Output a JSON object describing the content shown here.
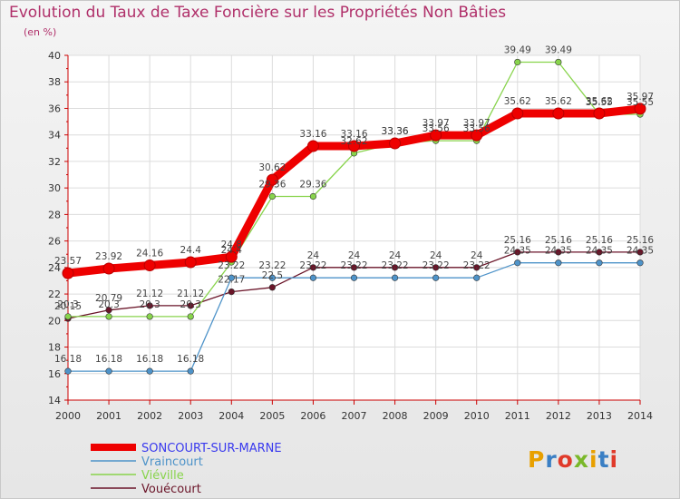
{
  "header": {
    "title": "Evolution du Taux de Taxe Foncière sur les Propriétés Non Bâties",
    "unit": "(en %)"
  },
  "logo": {
    "text": "Proxiti",
    "colors": [
      "#e8a000",
      "#3a7fc4",
      "#e03a2a",
      "#7ab82a",
      "#e8a000",
      "#3a7fc4",
      "#e03a2a"
    ]
  },
  "chart_data": {
    "type": "line",
    "x": [
      "2000",
      "2001",
      "2002",
      "2003",
      "2004",
      "2005",
      "2006",
      "2007",
      "2008",
      "2009",
      "2010",
      "2011",
      "2012",
      "2013",
      "2014"
    ],
    "ylim": [
      14,
      40
    ],
    "yticks": [
      "14",
      "16",
      "18",
      "20",
      "22",
      "24",
      "26",
      "28",
      "30",
      "32",
      "34",
      "36",
      "38",
      "40"
    ],
    "grid": true,
    "legend": "bottom-left",
    "series": [
      {
        "name": "SONCOURT-SUR-MARNE",
        "color": "#ee0000",
        "text_color": "#3a3aee",
        "values": [
          23.57,
          23.92,
          24.16,
          24.4,
          24.8,
          30.62,
          33.16,
          33.16,
          33.36,
          33.97,
          33.97,
          35.62,
          35.62,
          35.62,
          35.97
        ],
        "labels": [
          "23.57",
          "23.92",
          "24.16",
          "24.4",
          "24.8",
          "30.62",
          "33.16",
          "33.16",
          "33.36",
          "33.97",
          "33.97",
          "35.62",
          "35.62",
          "35.62",
          "35.97"
        ]
      },
      {
        "name": "Vraincourt",
        "color": "#4e93c9",
        "text_color": "#4e93c9",
        "values": [
          16.18,
          16.18,
          16.18,
          16.18,
          23.22,
          23.22,
          23.22,
          23.22,
          23.22,
          23.22,
          23.22,
          24.35,
          24.35,
          24.35,
          24.35
        ],
        "labels": [
          "16.18",
          "16.18",
          "16.18",
          "16.18",
          "23.22",
          "23.22",
          "23.22",
          "23.22",
          "23.22",
          "23.22",
          "23.22",
          "24.35",
          "24.35",
          "24.35",
          "24.35"
        ]
      },
      {
        "name": "Viéville",
        "color": "#88d44c",
        "text_color": "#88d44c",
        "values": [
          20.3,
          20.3,
          20.3,
          20.3,
          24.4,
          29.36,
          29.36,
          32.62,
          33.36,
          33.56,
          33.56,
          39.49,
          39.49,
          35.55,
          35.55
        ],
        "labels": [
          "20.3",
          "20.3",
          "20.3",
          "20.3",
          "24.4",
          "29.36",
          "29.36",
          "32.62",
          "33.36",
          "33.56",
          "33.56",
          "39.49",
          "39.49",
          "35.55",
          "35.55"
        ]
      },
      {
        "name": "Vouécourt",
        "color": "#6a1428",
        "text_color": "#6a1428",
        "values": [
          20.15,
          20.79,
          21.12,
          21.12,
          22.17,
          22.5,
          24,
          24,
          24,
          24,
          24,
          25.16,
          25.16,
          25.16,
          25.16
        ],
        "labels": [
          "20.15",
          "20.79",
          "21.12",
          "21.12",
          "22.17",
          "22.5",
          "24",
          "24",
          "24",
          "24",
          "24",
          "25.16",
          "25.16",
          "25.16",
          "25.16"
        ]
      }
    ]
  }
}
